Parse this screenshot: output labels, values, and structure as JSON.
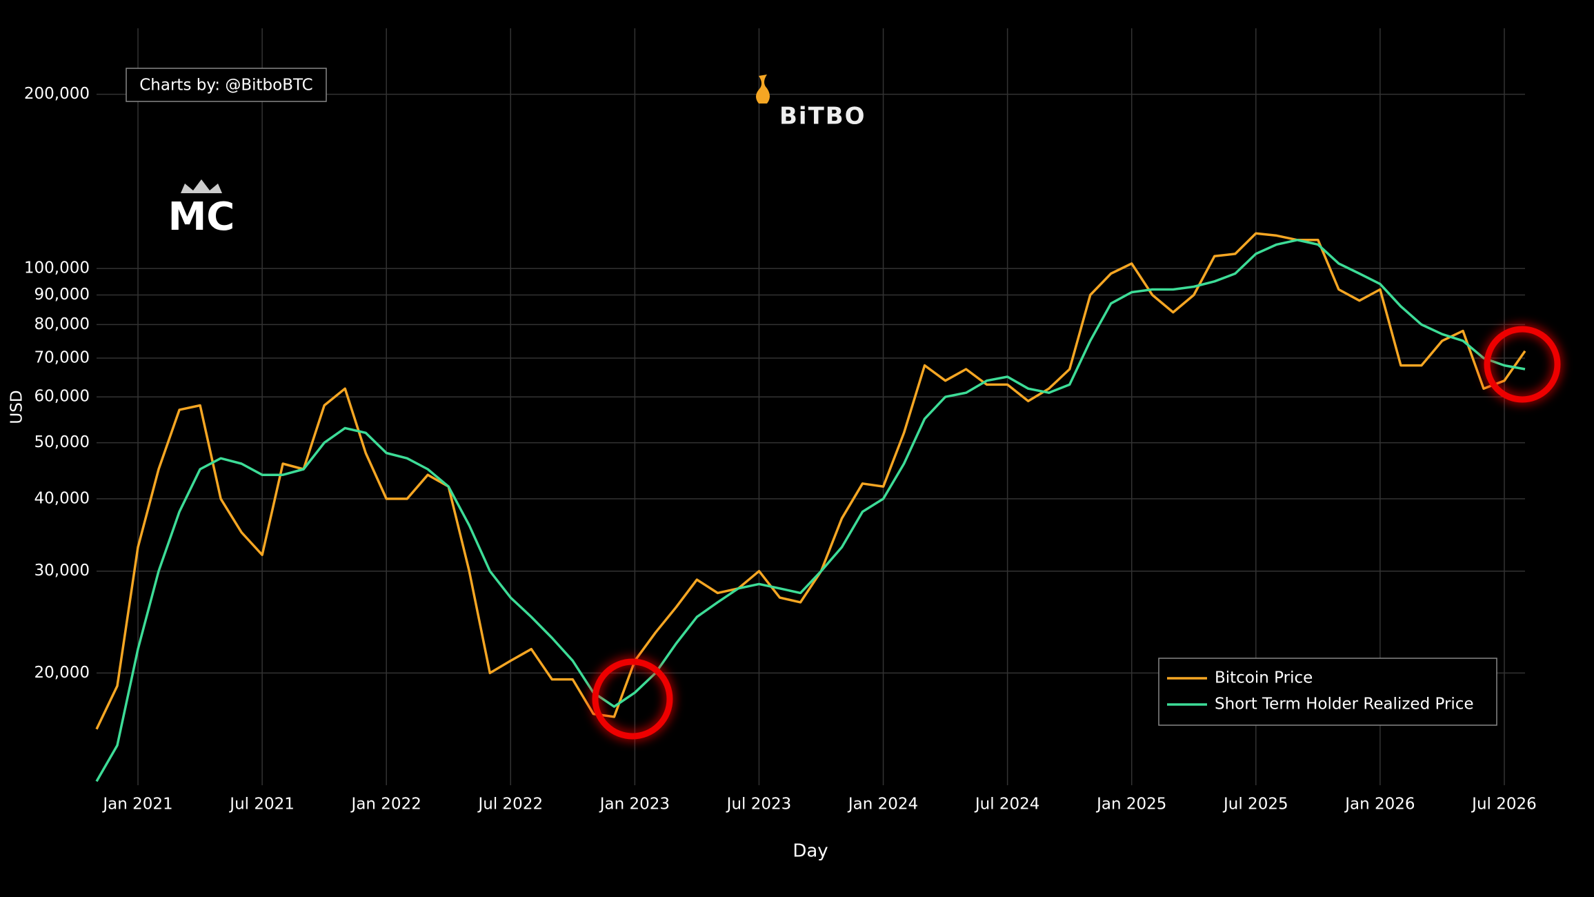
{
  "chart_data": {
    "type": "line",
    "watermark": "BiTBO",
    "logo_text": "MC",
    "annotation": "Charts by: @BitboBTC",
    "xlabel": "Day",
    "ylabel": "USD",
    "log_y": true,
    "grid": true,
    "legend_position": "lower right",
    "x": [
      "2020-11",
      "2020-12",
      "2021-01",
      "2021-02",
      "2021-03",
      "2021-04",
      "2021-05",
      "2021-06",
      "2021-07",
      "2021-08",
      "2021-09",
      "2021-10",
      "2021-11",
      "2021-12",
      "2022-01",
      "2022-02",
      "2022-03",
      "2022-04",
      "2022-05",
      "2022-06",
      "2022-07",
      "2022-08",
      "2022-09",
      "2022-10",
      "2022-11",
      "2022-12",
      "2023-01",
      "2023-02",
      "2023-03",
      "2023-04",
      "2023-05",
      "2023-06",
      "2023-07",
      "2023-08",
      "2023-09",
      "2023-10",
      "2023-11",
      "2023-12",
      "2024-01",
      "2024-02",
      "2024-03",
      "2024-04",
      "2024-05",
      "2024-06",
      "2024-07",
      "2024-08",
      "2024-09",
      "2024-10",
      "2024-11",
      "2024-12",
      "2025-01",
      "2025-02",
      "2025-03",
      "2025-04",
      "2025-05",
      "2025-06",
      "2025-07",
      "2025-08",
      "2025-09",
      "2025-10",
      "2025-11",
      "2025-12",
      "2026-01",
      "2026-02",
      "2026-03",
      "2026-04",
      "2026-05",
      "2026-06",
      "2026-07",
      "2026-08"
    ],
    "series": [
      {
        "name": "Bitcoin Price",
        "color": "#f5a623",
        "values": [
          16000,
          19000,
          33000,
          45000,
          57000,
          58000,
          40000,
          35000,
          32000,
          46000,
          45000,
          58000,
          62000,
          48000,
          40000,
          40000,
          44000,
          42000,
          30000,
          20000,
          21000,
          22000,
          19500,
          19500,
          17000,
          16800,
          21000,
          23500,
          26000,
          29000,
          27500,
          28000,
          30000,
          27000,
          26500,
          30000,
          37000,
          42500,
          42000,
          52000,
          68000,
          64000,
          67000,
          63000,
          63000,
          59000,
          62000,
          67000,
          90000,
          98000,
          102000,
          90000,
          84000,
          90000,
          105000,
          106000,
          115000,
          114000,
          112000,
          112000,
          92000,
          88000,
          92000,
          68000,
          68000,
          75000,
          78000,
          62000,
          64000,
          72000
        ]
      },
      {
        "name": "Short Term Holder Realized Price",
        "color": "#3ddc97",
        "values": [
          13000,
          15000,
          22000,
          30000,
          38000,
          45000,
          47000,
          46000,
          44000,
          44000,
          45000,
          50000,
          53000,
          52000,
          48000,
          47000,
          45000,
          42000,
          36000,
          30000,
          27000,
          25000,
          23000,
          21000,
          18500,
          17500,
          18500,
          20000,
          22500,
          25000,
          26500,
          28000,
          28500,
          28000,
          27500,
          30000,
          33000,
          38000,
          40000,
          46000,
          55000,
          60000,
          61000,
          64000,
          65000,
          62000,
          61000,
          63000,
          75000,
          87000,
          91000,
          92000,
          92000,
          93000,
          95000,
          98000,
          106000,
          110000,
          112000,
          110000,
          102000,
          98000,
          94000,
          86000,
          80000,
          77000,
          75000,
          70000,
          68000,
          67000
        ]
      }
    ],
    "xlim": [
      "2020-11",
      "2026-08"
    ],
    "xticks": [
      {
        "value": "2021-01",
        "label": "Jan 2021"
      },
      {
        "value": "2021-07",
        "label": "Jul 2021"
      },
      {
        "value": "2022-01",
        "label": "Jan 2022"
      },
      {
        "value": "2022-07",
        "label": "Jul 2022"
      },
      {
        "value": "2023-01",
        "label": "Jan 2023"
      },
      {
        "value": "2023-07",
        "label": "Jul 2023"
      },
      {
        "value": "2024-01",
        "label": "Jan 2024"
      },
      {
        "value": "2024-07",
        "label": "Jul 2024"
      },
      {
        "value": "2025-01",
        "label": "Jan 2025"
      },
      {
        "value": "2025-07",
        "label": "Jul 2025"
      },
      {
        "value": "2026-01",
        "label": "Jan 2026"
      },
      {
        "value": "2026-07",
        "label": "Jul 2026"
      }
    ],
    "ylim": [
      12800,
      260000
    ],
    "yticks": [
      {
        "value": 20000,
        "label": "20,000"
      },
      {
        "value": 30000,
        "label": "30,000"
      },
      {
        "value": 40000,
        "label": "40,000"
      },
      {
        "value": 50000,
        "label": "50,000"
      },
      {
        "value": 60000,
        "label": "60,000"
      },
      {
        "value": 70000,
        "label": "70,000"
      },
      {
        "value": 80000,
        "label": "80,000"
      },
      {
        "value": 90000,
        "label": "90,000"
      },
      {
        "value": 100000,
        "label": "100,000"
      },
      {
        "value": 200000,
        "label": "200,000"
      }
    ]
  }
}
